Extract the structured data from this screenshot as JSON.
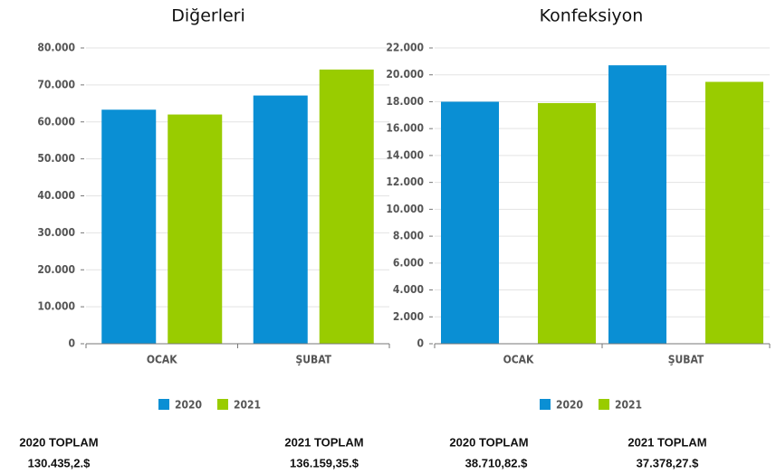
{
  "chart_data": [
    {
      "type": "bar",
      "title": "Diğerleri",
      "categories": [
        "OCAK",
        "ŞUBAT"
      ],
      "series": [
        {
          "name": "2020",
          "color": "#0a8fd4",
          "values": [
            63300,
            67135
          ]
        },
        {
          "name": "2021",
          "color": "#99cc00",
          "values": [
            62000,
            74159
          ]
        }
      ],
      "ylim": [
        0,
        80000
      ],
      "yticks": [
        0,
        {
          "value": 10000,
          "label": "10.000"
        },
        {
          "value": 20000,
          "label": "20.000"
        },
        {
          "value": 30000,
          "label": "30.000"
        },
        {
          "value": 40000,
          "label": "40.000"
        },
        {
          "value": 50000,
          "label": "50.000"
        },
        {
          "value": 60000,
          "label": "60.000"
        },
        {
          "value": 70000,
          "label": "70.000"
        },
        {
          "value": 80000,
          "label": "80.000"
        }
      ],
      "grid": true
    },
    {
      "type": "bar",
      "title": "Konfeksiyon",
      "categories": [
        "OCAK",
        "ŞUBAT"
      ],
      "series": [
        {
          "name": "2020",
          "color": "#0a8fd4",
          "values": [
            18000,
            20710
          ]
        },
        {
          "name": "2021",
          "color": "#99cc00",
          "values": [
            17900,
            19478
          ]
        }
      ],
      "ylim": [
        0,
        22000
      ],
      "yticks": [
        0,
        {
          "value": 2000,
          "label": "2.000"
        },
        {
          "value": 4000,
          "label": "4.000"
        },
        {
          "value": 6000,
          "label": "6.000"
        },
        {
          "value": 8000,
          "label": "8.000"
        },
        {
          "value": 10000,
          "label": "10.000"
        },
        {
          "value": 12000,
          "label": "12.000"
        },
        {
          "value": 14000,
          "label": "14.000"
        },
        {
          "value": 16000,
          "label": "16.000"
        },
        {
          "value": 18000,
          "label": "18.000"
        },
        {
          "value": 20000,
          "label": "20.000"
        },
        {
          "value": 22000,
          "label": "22.000"
        }
      ],
      "grid": true
    }
  ],
  "totals": [
    {
      "label": "2020 TOPLAM",
      "value": "130.435,2.$"
    },
    {
      "label": "2021 TOPLAM",
      "value": "136.159,35.$"
    },
    {
      "label": "2020 TOPLAM",
      "value": "38.710,82.$"
    },
    {
      "label": "2021 TOPLAM",
      "value": "37.378,27.$"
    }
  ]
}
